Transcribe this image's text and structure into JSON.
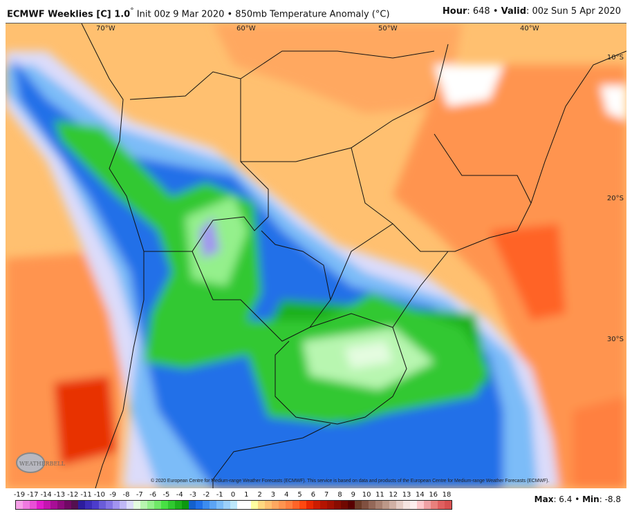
{
  "header": {
    "model": "ECMWF Weeklies [C] 1.0",
    "init": "Init 00z 9 Mar 2020",
    "field": "850mb Temperature Anomaly (°C)",
    "hour_label": "Hour",
    "hour": "648",
    "valid_label": "Valid",
    "valid": "00z Sun 5 Apr 2020"
  },
  "map": {
    "region": "South America",
    "lon_labels": [
      "70°W",
      "60°W",
      "50°W",
      "40°W"
    ],
    "lat_labels": [
      "10°S",
      "20°S",
      "30°S"
    ],
    "copyright": "© 2020 European Centre for Medium-range Weather Forecasts (ECMWF). This service is based on data and products of the European Centre for Medium-range Weather Forecasts (ECMWF).",
    "logo": "WeatherBELL"
  },
  "colorbar": {
    "labels": [
      "-19",
      "-17",
      "-14",
      "-13",
      "-12",
      "-11",
      "-10",
      "-9",
      "-8",
      "-7",
      "-6",
      "-5",
      "-4",
      "-3",
      "-2",
      "-1",
      "0",
      "1",
      "2",
      "3",
      "4",
      "5",
      "6",
      "7",
      "8",
      "9",
      "10",
      "11",
      "12",
      "13",
      "14",
      "16",
      "18"
    ],
    "colors": [
      "#f7a0e8",
      "#f07ae0",
      "#e84fd6",
      "#e01ccc",
      "#c414b0",
      "#a80e96",
      "#8c0a7c",
      "#700864",
      "#541050",
      "#2c1c9c",
      "#3c2cb8",
      "#4c3ccc",
      "#6a5cd8",
      "#8474e4",
      "#a294f0",
      "#c0b8f6",
      "#dcdcfa",
      "#e4fce0",
      "#b8f6b0",
      "#94f08c",
      "#70e868",
      "#48e044",
      "#30c830",
      "#1cb01c",
      "#0c9810",
      "#1460cc",
      "#2070e8",
      "#3c8cf0",
      "#5ca4f4",
      "#7cbcf8",
      "#9cd0fa",
      "#bce8fc",
      "#ffffff",
      "#ffffff",
      "#ffffa0",
      "#ffd880",
      "#ffc070",
      "#ffa860",
      "#ff9450",
      "#ff8040",
      "#ff6428",
      "#ff4810",
      "#e82800",
      "#cc1c00",
      "#b41400",
      "#a01000",
      "#880c00",
      "#700800",
      "#580000",
      "#6c3c28",
      "#805040",
      "#946858",
      "#a88070",
      "#bc9888",
      "#d0b0a4",
      "#e4ccc4",
      "#f4e4e0",
      "#ffeeee",
      "#ffc8cc",
      "#f0a0a4",
      "#e8807c",
      "#e06060",
      "#d85050"
    ],
    "max_label": "Max",
    "max": "6.4",
    "min_label": "Min",
    "min": "-8.8"
  }
}
